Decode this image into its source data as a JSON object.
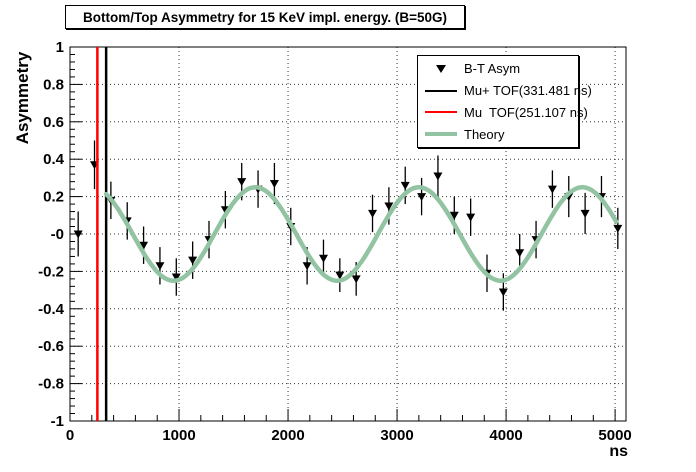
{
  "title": "Bottom/Top Asymmetry for 15 KeV impl. energy. (B=50G)",
  "axes": {
    "x": {
      "title": "ns",
      "tick_labels": [
        "0",
        "1000",
        "2000",
        "3000",
        "4000",
        "5000"
      ],
      "tick_values": [
        0,
        1000,
        2000,
        3000,
        4000,
        5000
      ],
      "minor_step": 200
    },
    "y": {
      "title": "Asymmetry",
      "tick_labels": [
        "1",
        "0.8",
        "0.6",
        "0.4",
        "0.2",
        "-0",
        "-0.2",
        "-0.4",
        "-0.6",
        "-0.8",
        "-1"
      ],
      "tick_values": [
        1,
        0.8,
        0.6,
        0.4,
        0.2,
        0,
        -0.2,
        -0.4,
        -0.6,
        -0.8,
        -1
      ],
      "minor_step": 0.04
    }
  },
  "legend": {
    "entries": [
      {
        "label": "B-T Asym",
        "sample": "marker",
        "color": "#000000"
      },
      {
        "label": "Mu+ TOF(331.481 ns)",
        "sample": "line",
        "color": "#000000",
        "thickness": 2.5
      },
      {
        "label": "Mu  TOF(251.107 ns)",
        "sample": "line",
        "color": "#ff0000",
        "thickness": 2.5
      },
      {
        "label": "Theory",
        "sample": "line-thick",
        "color": "#92c3a2",
        "thickness": 4.5
      }
    ]
  },
  "colors": {
    "background": "#ffffff",
    "frame": "#000000",
    "grid": "#333333",
    "marker": "#000000",
    "mu_plus_tof_line": "#000000",
    "mu_tof_line": "#ff0000",
    "theory": "#92c3a2"
  },
  "chart_data": {
    "type": "scatter",
    "title": "Bottom/Top Asymmetry for 15 KeV impl. energy. (B=50G)",
    "xlabel": "ns",
    "ylabel": "Asymmetry",
    "xlim": [
      0,
      5100
    ],
    "ylim": [
      -1,
      1
    ],
    "grid": "dotted-on-major-ticks",
    "legend_position": "top-right",
    "series": [
      {
        "name": "B-T Asym",
        "type": "scatter-errorbar",
        "marker": "triangle-down",
        "color": "#000000",
        "x": [
          75,
          225,
          375,
          525,
          675,
          825,
          975,
          1125,
          1275,
          1425,
          1575,
          1725,
          1875,
          2025,
          2175,
          2325,
          2475,
          2625,
          2775,
          2925,
          3075,
          3225,
          3375,
          3525,
          3675,
          3825,
          3975,
          4125,
          4275,
          4425,
          4575,
          4725,
          4875,
          5025
        ],
        "y": [
          0.0,
          0.37,
          0.18,
          0.07,
          -0.06,
          -0.17,
          -0.23,
          -0.14,
          -0.03,
          0.13,
          0.28,
          0.24,
          0.27,
          0.04,
          -0.17,
          -0.13,
          -0.22,
          -0.24,
          0.11,
          0.15,
          0.26,
          0.2,
          0.31,
          0.1,
          0.09,
          -0.21,
          -0.31,
          -0.1,
          -0.03,
          0.24,
          0.2,
          0.11,
          0.2,
          0.03
        ],
        "yerr": [
          0.12,
          0.13,
          0.1,
          0.1,
          0.1,
          0.1,
          0.1,
          0.1,
          0.1,
          0.1,
          0.1,
          0.1,
          0.11,
          0.1,
          0.1,
          0.1,
          0.09,
          0.09,
          0.1,
          0.1,
          0.1,
          0.1,
          0.11,
          0.1,
          0.1,
          0.1,
          0.1,
          0.1,
          0.1,
          0.1,
          0.11,
          0.11,
          0.11,
          0.11
        ]
      },
      {
        "name": "Mu+ TOF(331.481 ns)",
        "type": "vline",
        "x": 331.481,
        "color": "#000000",
        "width": 2.5
      },
      {
        "name": "Mu  TOF(251.107 ns)",
        "type": "vline",
        "x": 251.107,
        "color": "#ff0000",
        "width": 2.5
      },
      {
        "name": "Theory",
        "type": "curve",
        "color": "#92c3a2",
        "width": 4.5,
        "model": "amplitude*cos(2*pi*(t-phase_t_max)/period)",
        "amplitude": 0.25,
        "period_ns": 1500,
        "phase_t_max_ns": 1700,
        "t_range": [
          331,
          5030
        ]
      }
    ]
  }
}
